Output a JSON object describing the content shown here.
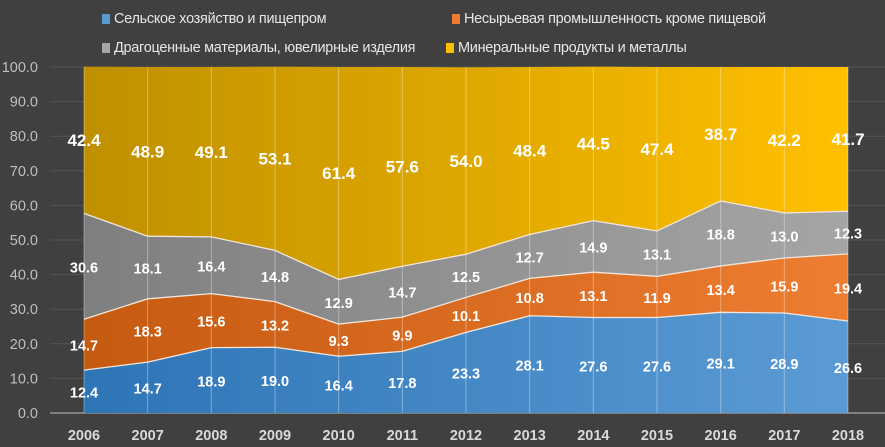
{
  "chart_data": {
    "type": "area",
    "stacked": true,
    "title": "",
    "xlabel": "",
    "ylabel": "",
    "ylim": [
      0,
      100
    ],
    "yticks": [
      "0.0",
      "10.0",
      "20.0",
      "30.0",
      "40.0",
      "50.0",
      "60.0",
      "70.0",
      "80.0",
      "90.0",
      "100.0"
    ],
    "x": [
      "2006",
      "2007",
      "2008",
      "2009",
      "2010",
      "2011",
      "2012",
      "2013",
      "2014",
      "2015",
      "2016",
      "2017",
      "2018"
    ],
    "legend_position": "top",
    "grid": true,
    "series": [
      {
        "name": "Сельское хозяйство и пищепром",
        "color": "#2e75b6",
        "color_light": "#5b9bd5",
        "values": [
          12.4,
          14.7,
          18.9,
          19.0,
          16.4,
          17.8,
          23.3,
          28.1,
          27.6,
          27.6,
          29.1,
          28.9,
          26.6
        ]
      },
      {
        "name": "Несырьевая промышленность кроме пищевой",
        "color": "#c55a11",
        "color_light": "#ed7d31",
        "values": [
          14.7,
          18.3,
          15.6,
          13.2,
          9.3,
          9.9,
          10.1,
          10.8,
          13.1,
          11.9,
          13.4,
          15.9,
          19.4
        ]
      },
      {
        "name": "Драгоценные материалы, ювелирные изделия",
        "color": "#7f7f7f",
        "color_light": "#a5a5a5",
        "values": [
          30.6,
          18.1,
          16.4,
          14.8,
          12.9,
          14.7,
          12.5,
          12.7,
          14.9,
          13.1,
          18.8,
          13.0,
          12.3
        ]
      },
      {
        "name": "Минеральные продукты и металлы",
        "color": "#bf9000",
        "color_light": "#ffc000",
        "values": [
          42.4,
          48.9,
          49.1,
          53.1,
          61.4,
          57.6,
          54.0,
          48.4,
          44.5,
          47.4,
          38.7,
          42.2,
          41.7
        ]
      }
    ]
  }
}
